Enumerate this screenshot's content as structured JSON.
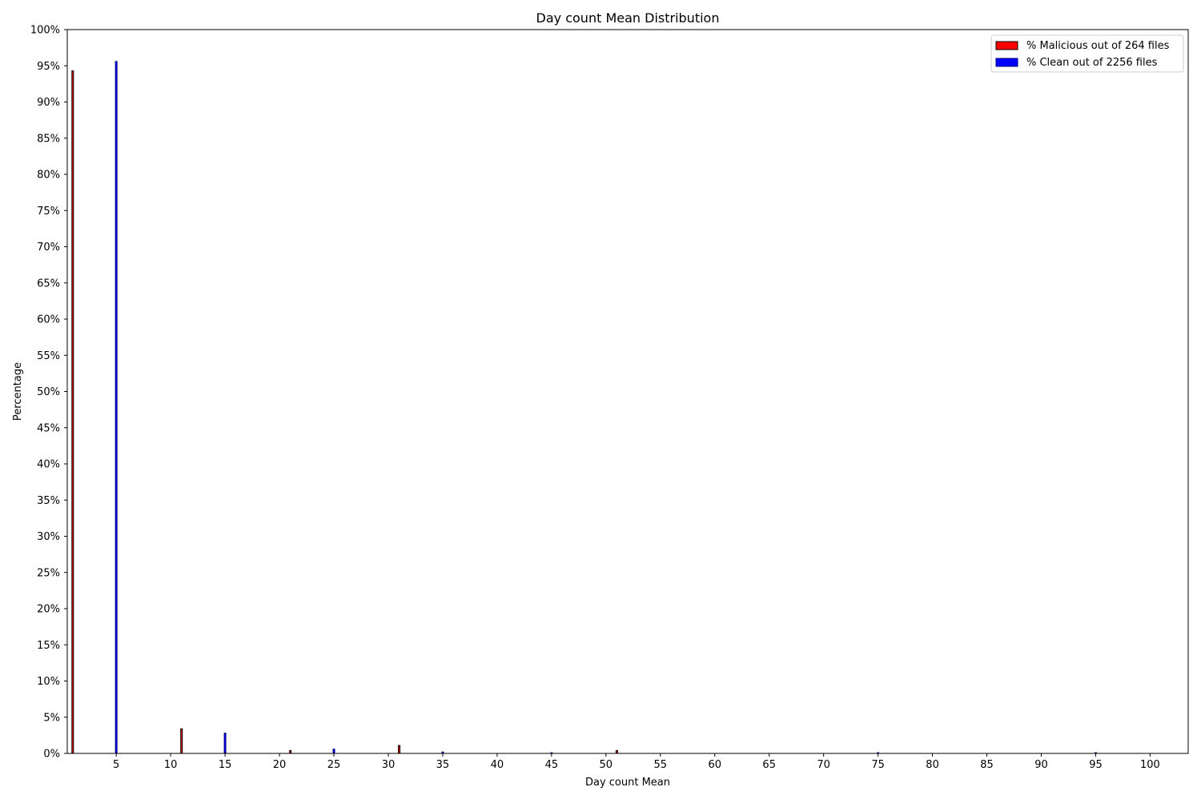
{
  "chart_data": {
    "type": "bar",
    "title": "Day count Mean Distribution",
    "xlabel": "Day count Mean",
    "ylabel": "Percentage",
    "xlim": [
      0.5,
      103.5
    ],
    "ylim": [
      0,
      100
    ],
    "x_ticks": [
      5,
      10,
      15,
      20,
      25,
      30,
      35,
      40,
      45,
      50,
      55,
      60,
      65,
      70,
      75,
      80,
      85,
      90,
      95,
      100
    ],
    "y_ticks": [
      0,
      5,
      10,
      15,
      20,
      25,
      30,
      35,
      40,
      45,
      50,
      55,
      60,
      65,
      70,
      75,
      80,
      85,
      90,
      95,
      100
    ],
    "y_tick_suffix": "%",
    "grid": false,
    "legend_position": "top-right",
    "series": [
      {
        "name": "% Malicious out of 264 files",
        "color": "#ff0000",
        "edge_color": "#000000",
        "points": [
          {
            "x": 1,
            "y": 94.3
          },
          {
            "x": 11,
            "y": 3.4
          },
          {
            "x": 21,
            "y": 0.4
          },
          {
            "x": 31,
            "y": 1.1
          },
          {
            "x": 51,
            "y": 0.4
          }
        ]
      },
      {
        "name": "% Clean out of 2256 files",
        "color": "#0000ff",
        "edge_color": "#000080",
        "points": [
          {
            "x": 5,
            "y": 95.6
          },
          {
            "x": 15,
            "y": 2.8
          },
          {
            "x": 25,
            "y": 0.6
          },
          {
            "x": 35,
            "y": 0.2
          },
          {
            "x": 45,
            "y": 0.1
          },
          {
            "x": 75,
            "y": 0.1
          },
          {
            "x": 95,
            "y": 0.1
          }
        ]
      }
    ]
  }
}
